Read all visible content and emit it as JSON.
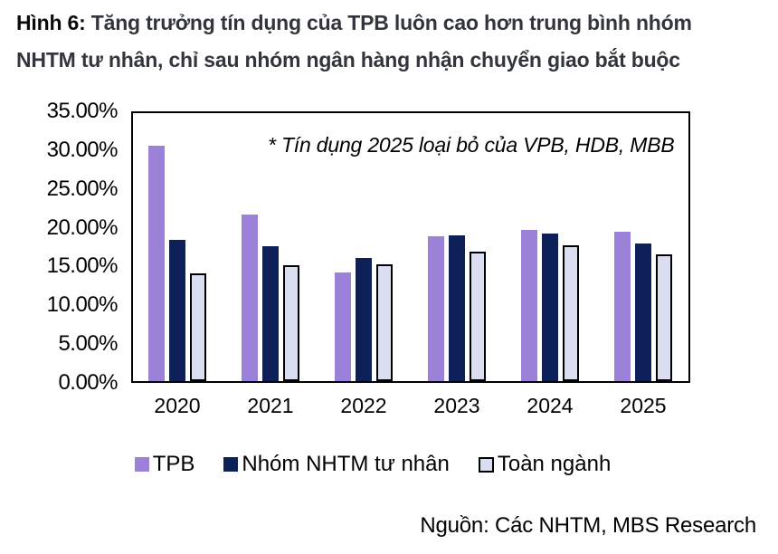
{
  "figure": {
    "title_label": "Hình 6:",
    "title_line1": "Tăng trưởng tín dụng của TPB luôn cao hơn trung bình nhóm",
    "title_line2": "NHTM tư nhân, chỉ sau nhóm ngân hàng nhận chuyển giao bắt buộc",
    "source": "Nguồn: Các NHTM, MBS Research"
  },
  "colors": {
    "tpb": "#9c81d9",
    "private_group": "#0d2158",
    "industry_fill": "#d9dff1",
    "industry_border": "#000000",
    "title_label": "#0b0b0b",
    "title_text": "#32363c",
    "axis": "#000000"
  },
  "chart_data": {
    "type": "bar",
    "title": "Tăng trưởng tín dụng TPB so với nhóm NHTM tư nhân và toàn ngành",
    "categories": [
      "2020",
      "2021",
      "2022",
      "2023",
      "2024",
      "2025"
    ],
    "series": [
      {
        "name": "TPB",
        "values": [
          30.8,
          21.7,
          14.2,
          18.9,
          19.8,
          19.5
        ]
      },
      {
        "name": "Nhóm NHTM tư nhân",
        "values": [
          18.4,
          17.6,
          16.1,
          19.0,
          19.3,
          18.0
        ]
      },
      {
        "name": "Toàn ngành",
        "values": [
          14.1,
          15.1,
          15.2,
          16.9,
          17.7,
          16.6
        ]
      }
    ],
    "unit": "%",
    "ylim": [
      0,
      35
    ],
    "ytick_step": 5,
    "ytick_labels": [
      "35.00%",
      "30.00%",
      "25.00%",
      "20.00%",
      "15.00%",
      "10.00%",
      "5.00%",
      "0.00%"
    ],
    "grid": false,
    "legend_position": "bottom",
    "annotation": "* Tín dụng 2025 loại bỏ của VPB, HDB, MBB"
  }
}
